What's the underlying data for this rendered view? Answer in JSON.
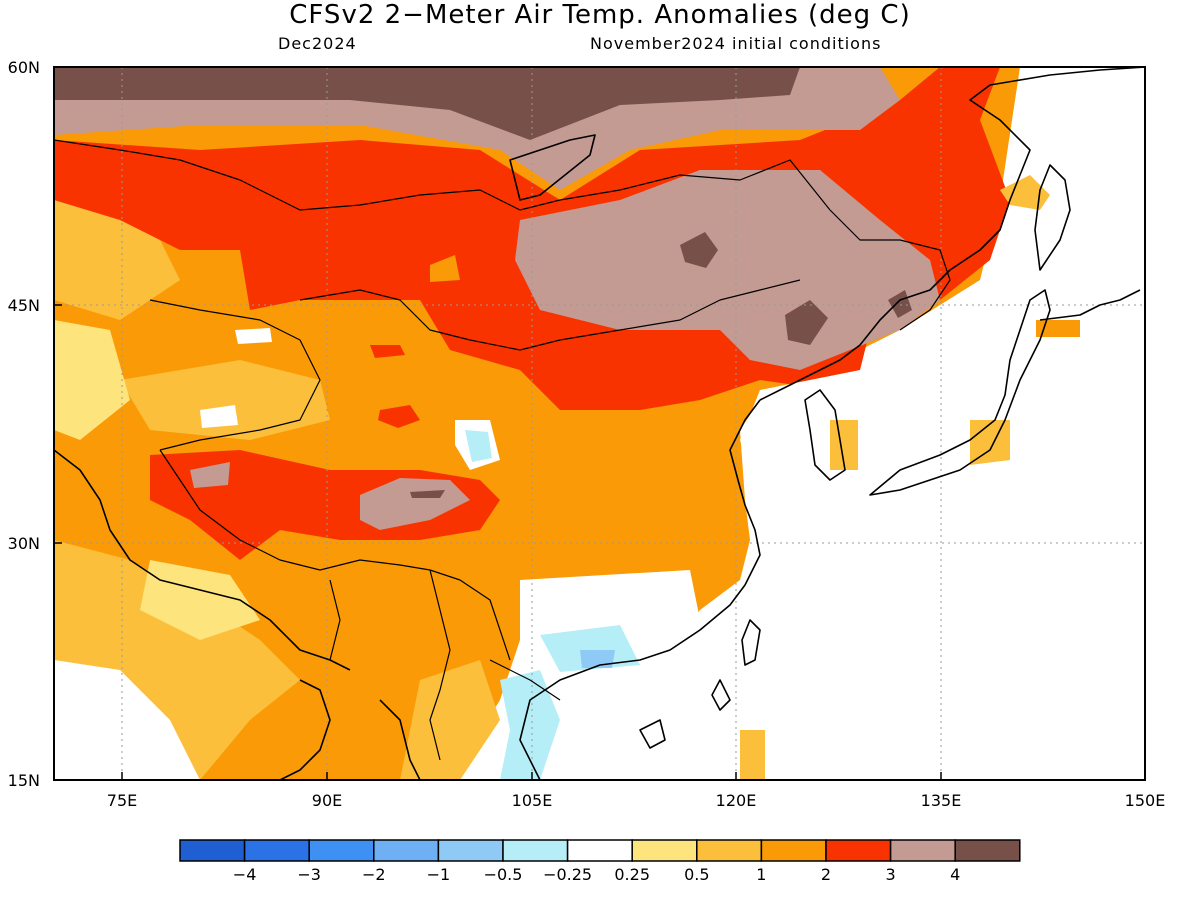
{
  "title": "CFSv2 2−Meter Air Temp. Anomalies (deg C)",
  "subtitle_left": "Dec2024",
  "subtitle_right": "November2024 initial conditions",
  "map": {
    "lon_range": [
      70,
      150
    ],
    "lat_range": [
      15,
      60
    ],
    "x_ticks": [
      "75E",
      "90E",
      "105E",
      "120E",
      "135E",
      "150E"
    ],
    "y_ticks": [
      "60N",
      "45N",
      "30N",
      "15N"
    ]
  },
  "colorbar": {
    "colors": [
      "#1f5fd1",
      "#2a72e6",
      "#3e90f2",
      "#6fb0f5",
      "#8fcaf7",
      "#b5eef7",
      "#ffffff",
      "#fde47d",
      "#fcbf3b",
      "#fa9a06",
      "#f83300",
      "#c49b93",
      "#77504a"
    ],
    "labels": [
      "−4",
      "−3",
      "−2",
      "−1",
      "−0.5",
      "−0.25",
      "0.25",
      "0.5",
      "1",
      "2",
      "3",
      "4"
    ]
  }
}
